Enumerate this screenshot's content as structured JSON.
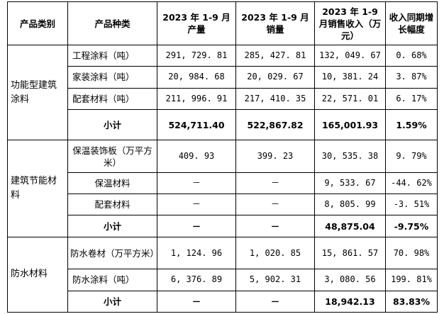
{
  "headers": [
    "产品类别",
    "产品种类",
    "2023 年 1-9 月产量",
    "2023 年 1-9 月销量",
    "2023 年 1-9 月销售收入（万元）",
    "收入同期增长幅度"
  ],
  "groups": [
    {
      "category": "功能型建筑涂料",
      "rows": [
        {
          "product": "工程涂料（吨）",
          "output": "291, 729. 81",
          "sales": "285, 427. 81",
          "revenue": "132, 049. 67",
          "growth": "0. 68%"
        },
        {
          "product": "家装涂料（吨）",
          "output": "20, 984. 68",
          "sales": "20, 029. 67",
          "revenue": "10, 381. 24",
          "growth": "3. 87%"
        },
        {
          "product": "配套材料（吨）",
          "output": "211, 996. 91",
          "sales": "217, 410. 35",
          "revenue": "22, 571. 01",
          "growth": "6. 17%"
        }
      ],
      "subtotal": {
        "label": "小计",
        "output": "524,711.40",
        "sales": "522,867.82",
        "revenue": "165,001.93",
        "growth": "1.59%"
      }
    },
    {
      "category": "建筑节能材料",
      "rows": [
        {
          "product": "保温装饰板（万平方米）",
          "output": "409. 93",
          "sales": "399. 23",
          "revenue": "30, 535. 38",
          "growth": "9. 79%"
        },
        {
          "product": "保温材料",
          "output": "－",
          "sales": "－",
          "revenue": "9, 533. 67",
          "growth": "-44. 62%"
        },
        {
          "product": "配套材料",
          "output": "－",
          "sales": "－",
          "revenue": "8, 805. 99",
          "growth": "-3. 51%"
        }
      ],
      "subtotal": {
        "label": "小计",
        "output": "－",
        "sales": "－",
        "revenue": "48,875.04",
        "growth": "-9.75%"
      }
    },
    {
      "category": "防水材料",
      "rows": [
        {
          "product": "防水卷材（万平方米）",
          "output": "1, 124. 96",
          "sales": "1, 020. 85",
          "revenue": "15, 861. 57",
          "growth": "70. 98%"
        },
        {
          "product": "防水涂料（吨）",
          "output": "6, 376. 89",
          "sales": "5, 902. 31",
          "revenue": "3, 080. 56",
          "growth": "199. 81%"
        }
      ],
      "subtotal": {
        "label": "小计",
        "output": "－",
        "sales": "－",
        "revenue": "18,942.13",
        "growth": "83.83%"
      }
    }
  ]
}
